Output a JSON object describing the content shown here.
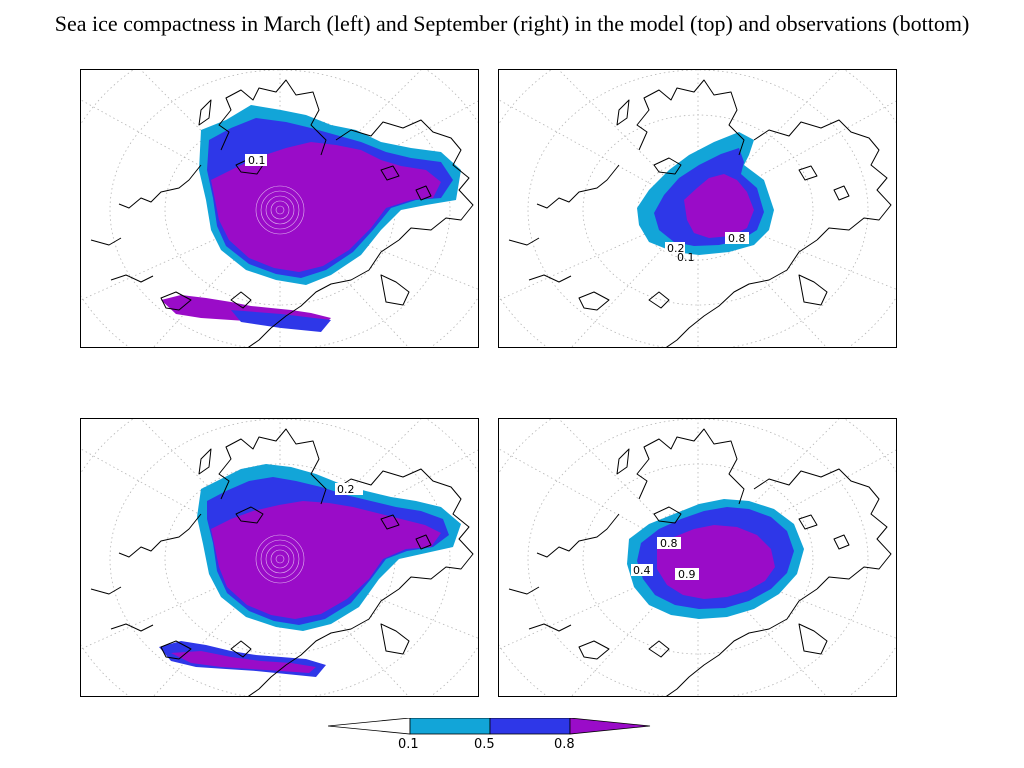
{
  "figure": {
    "title": "Sea ice compactness in March (left) and September (right) in the model (top) and observations (bottom)"
  },
  "panels": [
    {
      "contour_labels": [
        "0.1"
      ]
    },
    {
      "contour_labels": [
        "0.8",
        "0.2",
        "0.1"
      ]
    },
    {
      "contour_labels": [
        "0.2"
      ]
    },
    {
      "contour_labels": [
        "0.8",
        "0.4",
        "0.9"
      ]
    }
  ],
  "colorbar": {
    "ticks": [
      "0.1",
      "0.5",
      "0.8"
    ],
    "colors": [
      "#ffffff",
      "#12a5d8",
      "#2e37e8",
      "#9a0cc8"
    ]
  },
  "colors": {
    "ice_core": "#9a0cc8",
    "ice_mid": "#2e37e8",
    "ice_edge": "#12a5d8",
    "coastline": "#000000",
    "graticule": "#b5b5b5"
  }
}
